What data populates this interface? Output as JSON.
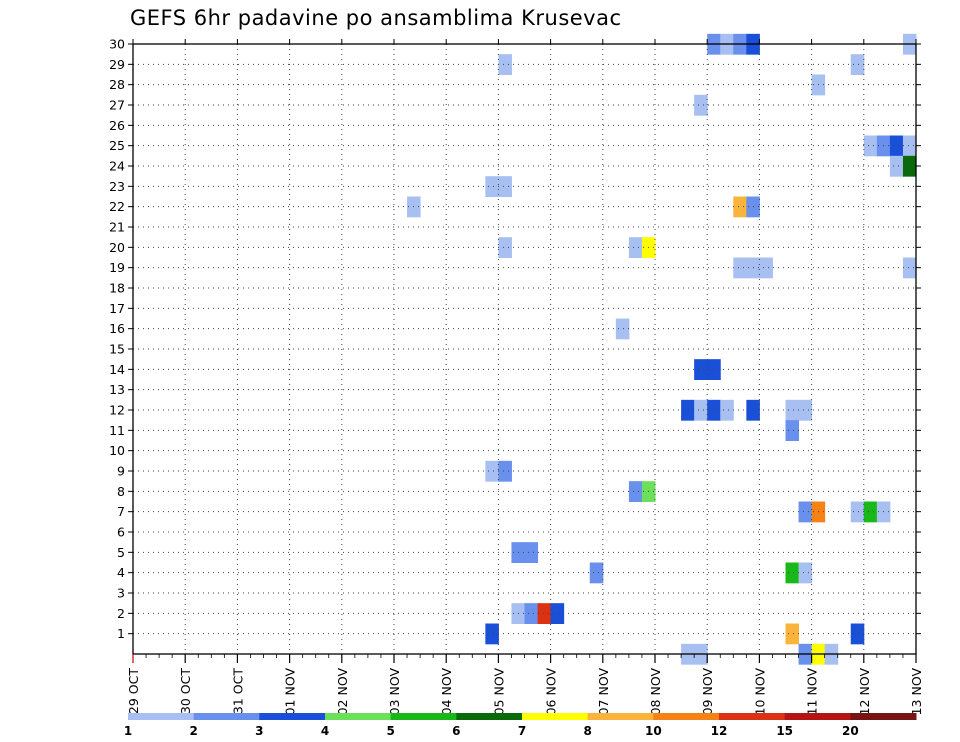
{
  "chart_data": {
    "type": "heatmap",
    "title": "GEFS 6hr padavine po ansamblima Krusevac",
    "x_ticks": [
      "29 OCT",
      "30 OCT",
      "31 OCT",
      "01 NOV",
      "02 NOV",
      "03 NOV",
      "04 NOV",
      "05 NOV",
      "06 NOV",
      "07 NOV",
      "08 NOV",
      "09 NOV",
      "10 NOV",
      "11 NOV",
      "12 NOV",
      "13 NOV"
    ],
    "y_ticks": [
      "1",
      "2",
      "3",
      "4",
      "5",
      "6",
      "7",
      "8",
      "9",
      "10",
      "11",
      "12",
      "13",
      "14",
      "15",
      "16",
      "17",
      "18",
      "19",
      "20",
      "21",
      "22",
      "23",
      "24",
      "25",
      "26",
      "27",
      "28",
      "29",
      "30"
    ],
    "y_range": [
      0,
      30
    ],
    "x_range": [
      "29 OCT 00Z",
      "13 NOV 00Z"
    ],
    "steps_per_day": 4,
    "grid": true,
    "legend_position": "bottom",
    "legend": {
      "labels": [
        "1",
        "2",
        "3",
        "4",
        "5",
        "6",
        "7",
        "8",
        "10",
        "12",
        "15",
        "20"
      ],
      "colors": [
        "#a8bff2",
        "#6a90ee",
        "#1a4fd8",
        "#6ce05a",
        "#18b818",
        "#0a6a0a",
        "#ffff00",
        "#fab43c",
        "#f58214",
        "#dc3214",
        "#b41414",
        "#781414"
      ]
    },
    "cells": [
      {
        "member": 30,
        "time": "09 NOV 00Z",
        "color": 2
      },
      {
        "member": 30,
        "time": "09 NOV 06Z",
        "color": 1
      },
      {
        "member": 30,
        "time": "09 NOV 12Z",
        "color": 2
      },
      {
        "member": 30,
        "time": "09 NOV 18Z",
        "color": 3
      },
      {
        "member": 30,
        "time": "12 NOV 18Z",
        "color": 1
      },
      {
        "member": 29,
        "time": "05 NOV 00Z",
        "color": 1
      },
      {
        "member": 29,
        "time": "11 NOV 18Z",
        "color": 1
      },
      {
        "member": 28,
        "time": "11 NOV 00Z",
        "color": 1
      },
      {
        "member": 27,
        "time": "08 NOV 18Z",
        "color": 1
      },
      {
        "member": 25,
        "time": "12 NOV 00Z",
        "color": 1
      },
      {
        "member": 25,
        "time": "12 NOV 06Z",
        "color": 2
      },
      {
        "member": 25,
        "time": "12 NOV 12Z",
        "color": 3
      },
      {
        "member": 25,
        "time": "12 NOV 18Z",
        "color": 1
      },
      {
        "member": 24,
        "time": "12 NOV 12Z",
        "color": 1
      },
      {
        "member": 24,
        "time": "12 NOV 18Z",
        "color": 6
      },
      {
        "member": 23,
        "time": "04 NOV 18Z",
        "color": 1
      },
      {
        "member": 23,
        "time": "05 NOV 00Z",
        "color": 1
      },
      {
        "member": 22,
        "time": "03 NOV 06Z",
        "color": 1
      },
      {
        "member": 22,
        "time": "09 NOV 12Z",
        "color": 8
      },
      {
        "member": 22,
        "time": "09 NOV 18Z",
        "color": 2
      },
      {
        "member": 20,
        "time": "05 NOV 00Z",
        "color": 1
      },
      {
        "member": 20,
        "time": "07 NOV 12Z",
        "color": 1
      },
      {
        "member": 20,
        "time": "07 NOV 18Z",
        "color": 7
      },
      {
        "member": 19,
        "time": "09 NOV 12Z",
        "color": 1
      },
      {
        "member": 19,
        "time": "09 NOV 18Z",
        "color": 1
      },
      {
        "member": 19,
        "time": "10 NOV 00Z",
        "color": 1
      },
      {
        "member": 19,
        "time": "12 NOV 18Z",
        "color": 1
      },
      {
        "member": 16,
        "time": "07 NOV 06Z",
        "color": 1
      },
      {
        "member": 14,
        "time": "08 NOV 18Z",
        "color": 3
      },
      {
        "member": 14,
        "time": "09 NOV 00Z",
        "color": 3
      },
      {
        "member": 12,
        "time": "08 NOV 12Z",
        "color": 3
      },
      {
        "member": 12,
        "time": "08 NOV 18Z",
        "color": 1
      },
      {
        "member": 12,
        "time": "09 NOV 00Z",
        "color": 3
      },
      {
        "member": 12,
        "time": "09 NOV 06Z",
        "color": 1
      },
      {
        "member": 12,
        "time": "09 NOV 18Z",
        "color": 3
      },
      {
        "member": 12,
        "time": "10 NOV 12Z",
        "color": 1
      },
      {
        "member": 12,
        "time": "10 NOV 18Z",
        "color": 1
      },
      {
        "member": 11,
        "time": "10 NOV 12Z",
        "color": 2
      },
      {
        "member": 9,
        "time": "04 NOV 18Z",
        "color": 1
      },
      {
        "member": 9,
        "time": "05 NOV 00Z",
        "color": 2
      },
      {
        "member": 8,
        "time": "07 NOV 12Z",
        "color": 2
      },
      {
        "member": 8,
        "time": "07 NOV 18Z",
        "color": 4
      },
      {
        "member": 7,
        "time": "10 NOV 18Z",
        "color": 2
      },
      {
        "member": 7,
        "time": "11 NOV 00Z",
        "color": 9
      },
      {
        "member": 7,
        "time": "11 NOV 18Z",
        "color": 1
      },
      {
        "member": 7,
        "time": "12 NOV 00Z",
        "color": 5
      },
      {
        "member": 7,
        "time": "12 NOV 06Z",
        "color": 1
      },
      {
        "member": 5,
        "time": "05 NOV 06Z",
        "color": 2
      },
      {
        "member": 5,
        "time": "05 NOV 12Z",
        "color": 2
      },
      {
        "member": 4,
        "time": "06 NOV 18Z",
        "color": 2
      },
      {
        "member": 4,
        "time": "10 NOV 12Z",
        "color": 5
      },
      {
        "member": 4,
        "time": "10 NOV 18Z",
        "color": 1
      },
      {
        "member": 2,
        "time": "05 NOV 06Z",
        "color": 1
      },
      {
        "member": 2,
        "time": "05 NOV 12Z",
        "color": 2
      },
      {
        "member": 2,
        "time": "05 NOV 18Z",
        "color": 10
      },
      {
        "member": 2,
        "time": "06 NOV 00Z",
        "color": 3
      },
      {
        "member": 1,
        "time": "04 NOV 18Z",
        "color": 3
      },
      {
        "member": 1,
        "time": "10 NOV 12Z",
        "color": 8
      },
      {
        "member": 1,
        "time": "11 NOV 18Z",
        "color": 3
      },
      {
        "member": 0,
        "time": "08 NOV 12Z",
        "color": 1
      },
      {
        "member": 0,
        "time": "08 NOV 18Z",
        "color": 1
      },
      {
        "member": 0,
        "time": "10 NOV 18Z",
        "color": 2
      },
      {
        "member": 0,
        "time": "11 NOV 00Z",
        "color": 7
      },
      {
        "member": 0,
        "time": "11 NOV 06Z",
        "color": 1
      }
    ]
  }
}
